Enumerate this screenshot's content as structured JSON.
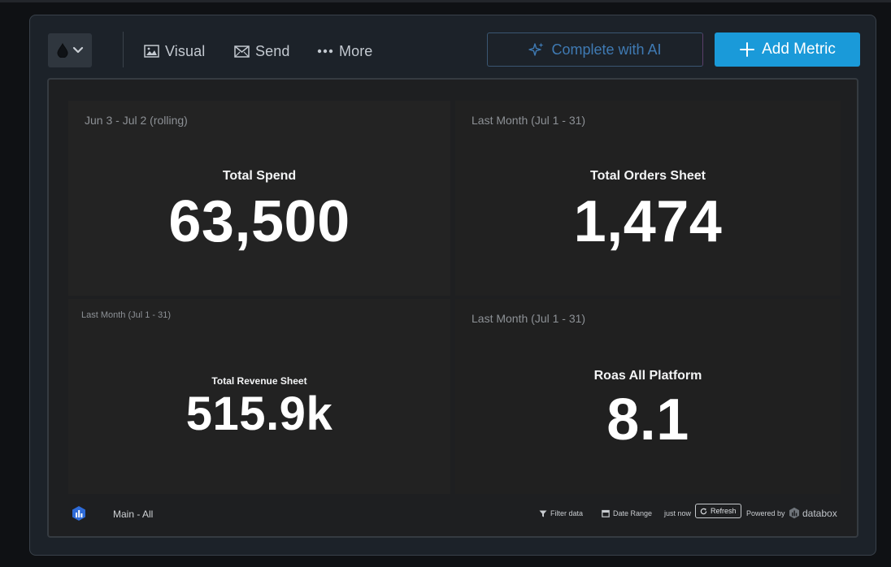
{
  "toolbar": {
    "visual_label": "Visual",
    "send_label": "Send",
    "more_label": "More",
    "ai_label": "Complete with AI",
    "add_metric_label": "Add Metric"
  },
  "tiles": [
    {
      "date_range": "Jun 3 - Jul 2 (rolling)",
      "title": "Total Spend",
      "value": "63,500"
    },
    {
      "date_range": "Last Month (Jul 1 - 31)",
      "title": "Total Orders Sheet",
      "value": "1,474"
    },
    {
      "date_range": "Last Month (Jul 1 - 31)",
      "title": "Total Revenue Sheet",
      "value": "515.9k"
    },
    {
      "date_range": "Last Month (Jul 1 - 31)",
      "title": "Roas All Platform",
      "value": "8.1"
    }
  ],
  "footer": {
    "board_name": "Main - All",
    "filter_label": "Filter data",
    "date_range_label": "Date Range",
    "updated": "just now",
    "refresh_label": "Refresh",
    "powered_by": "Powered by",
    "brand": "databox"
  },
  "colors": {
    "accent": "#1a9ad9",
    "ai_text": "#3f7ab3",
    "frame_bg": "#1c2229",
    "tile_bg": "#212121"
  }
}
